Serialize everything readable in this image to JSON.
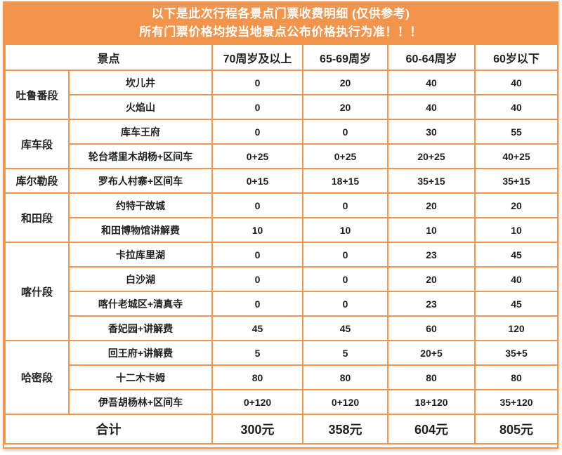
{
  "banner": {
    "line1": "以下是此次行程各景点门票收费明细 (仅供参考)",
    "line2": "所有门票价格均按当地景点公布价格执行为准！！！"
  },
  "colors": {
    "accent_orange": "#f2944b",
    "border_orange": "#f0964e",
    "text": "#1f1f1f",
    "banner_text": "#ffffff"
  },
  "table": {
    "headers": [
      "景点",
      "70周岁及以上",
      "65-69周岁",
      "60-64周岁",
      "60岁以下"
    ],
    "groups": [
      {
        "name": "吐鲁番段",
        "rows": [
          {
            "spot": "坎儿井",
            "values": [
              "0",
              "20",
              "40",
              "40"
            ]
          },
          {
            "spot": "火焰山",
            "values": [
              "0",
              "20",
              "40",
              "40"
            ]
          }
        ]
      },
      {
        "name": "库车段",
        "rows": [
          {
            "spot": "库车王府",
            "values": [
              "0",
              "0",
              "30",
              "55"
            ]
          },
          {
            "spot": "轮台塔里木胡杨+区间车",
            "values": [
              "0+25",
              "0+25",
              "20+25",
              "40+25"
            ]
          }
        ]
      },
      {
        "name": "库尔勒段",
        "rows": [
          {
            "spot": "罗布人村寨+区间车",
            "values": [
              "0+15",
              "18+15",
              "35+15",
              "35+15"
            ]
          }
        ]
      },
      {
        "name": "和田段",
        "rows": [
          {
            "spot": "约特干故城",
            "values": [
              "0",
              "0",
              "20",
              "20"
            ]
          },
          {
            "spot": "和田博物馆讲解费",
            "values": [
              "10",
              "10",
              "10",
              "10"
            ]
          }
        ]
      },
      {
        "name": "喀什段",
        "rows": [
          {
            "spot": "卡拉库里湖",
            "values": [
              "0",
              "0",
              "23",
              "45"
            ]
          },
          {
            "spot": "白沙湖",
            "values": [
              "0",
              "0",
              "20",
              "40"
            ]
          },
          {
            "spot": "喀什老城区+清真寺",
            "values": [
              "0",
              "0",
              "23",
              "45"
            ]
          },
          {
            "spot": "香妃园+讲解费",
            "values": [
              "45",
              "45",
              "60",
              "120"
            ]
          }
        ]
      },
      {
        "name": "哈密段",
        "rows": [
          {
            "spot": "回王府+讲解费",
            "values": [
              "5",
              "5",
              "20+5",
              "35+5"
            ]
          },
          {
            "spot": "十二木卡姆",
            "values": [
              "80",
              "80",
              "80",
              "80"
            ]
          },
          {
            "spot": "伊吾胡杨林+区间车",
            "values": [
              "0+120",
              "0+120",
              "18+120",
              "35+120"
            ]
          }
        ]
      }
    ],
    "total": {
      "label": "合计",
      "values": [
        "300元",
        "358元",
        "604元",
        "805元"
      ]
    }
  }
}
